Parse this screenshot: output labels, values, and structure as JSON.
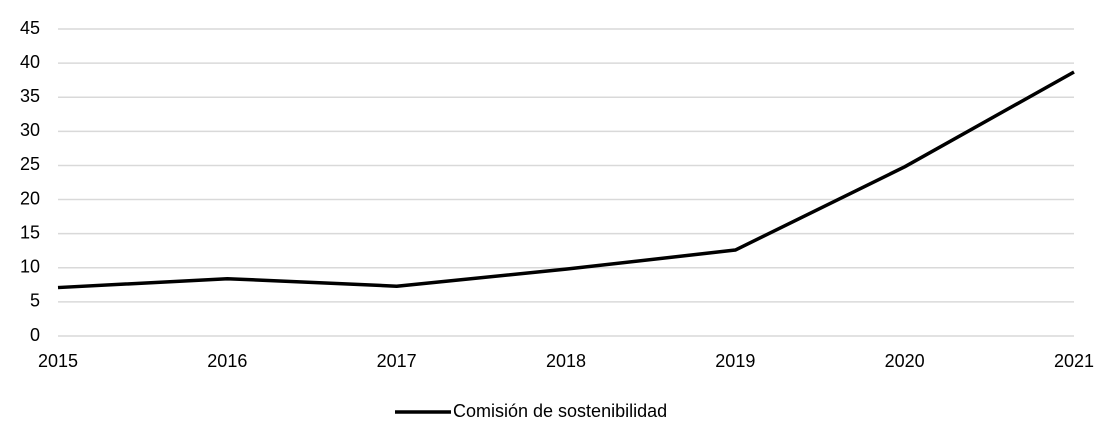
{
  "chart_data": {
    "type": "line",
    "x": [
      2015,
      2016,
      2017,
      2018,
      2019,
      2020,
      2021
    ],
    "series": [
      {
        "name": "Comisión de sostenibilidad",
        "color": "#000000",
        "values": [
          7.1,
          8.4,
          7.3,
          9.8,
          12.6,
          24.8,
          38.7
        ]
      }
    ],
    "xlim": [
      2015,
      2021
    ],
    "xticks": [
      2015,
      2016,
      2017,
      2018,
      2019,
      2020,
      2021
    ],
    "ylim": [
      0,
      45
    ],
    "yticks": [
      0,
      5,
      10,
      15,
      20,
      25,
      30,
      35,
      40,
      45
    ],
    "grid": true,
    "legend": "bottom"
  }
}
